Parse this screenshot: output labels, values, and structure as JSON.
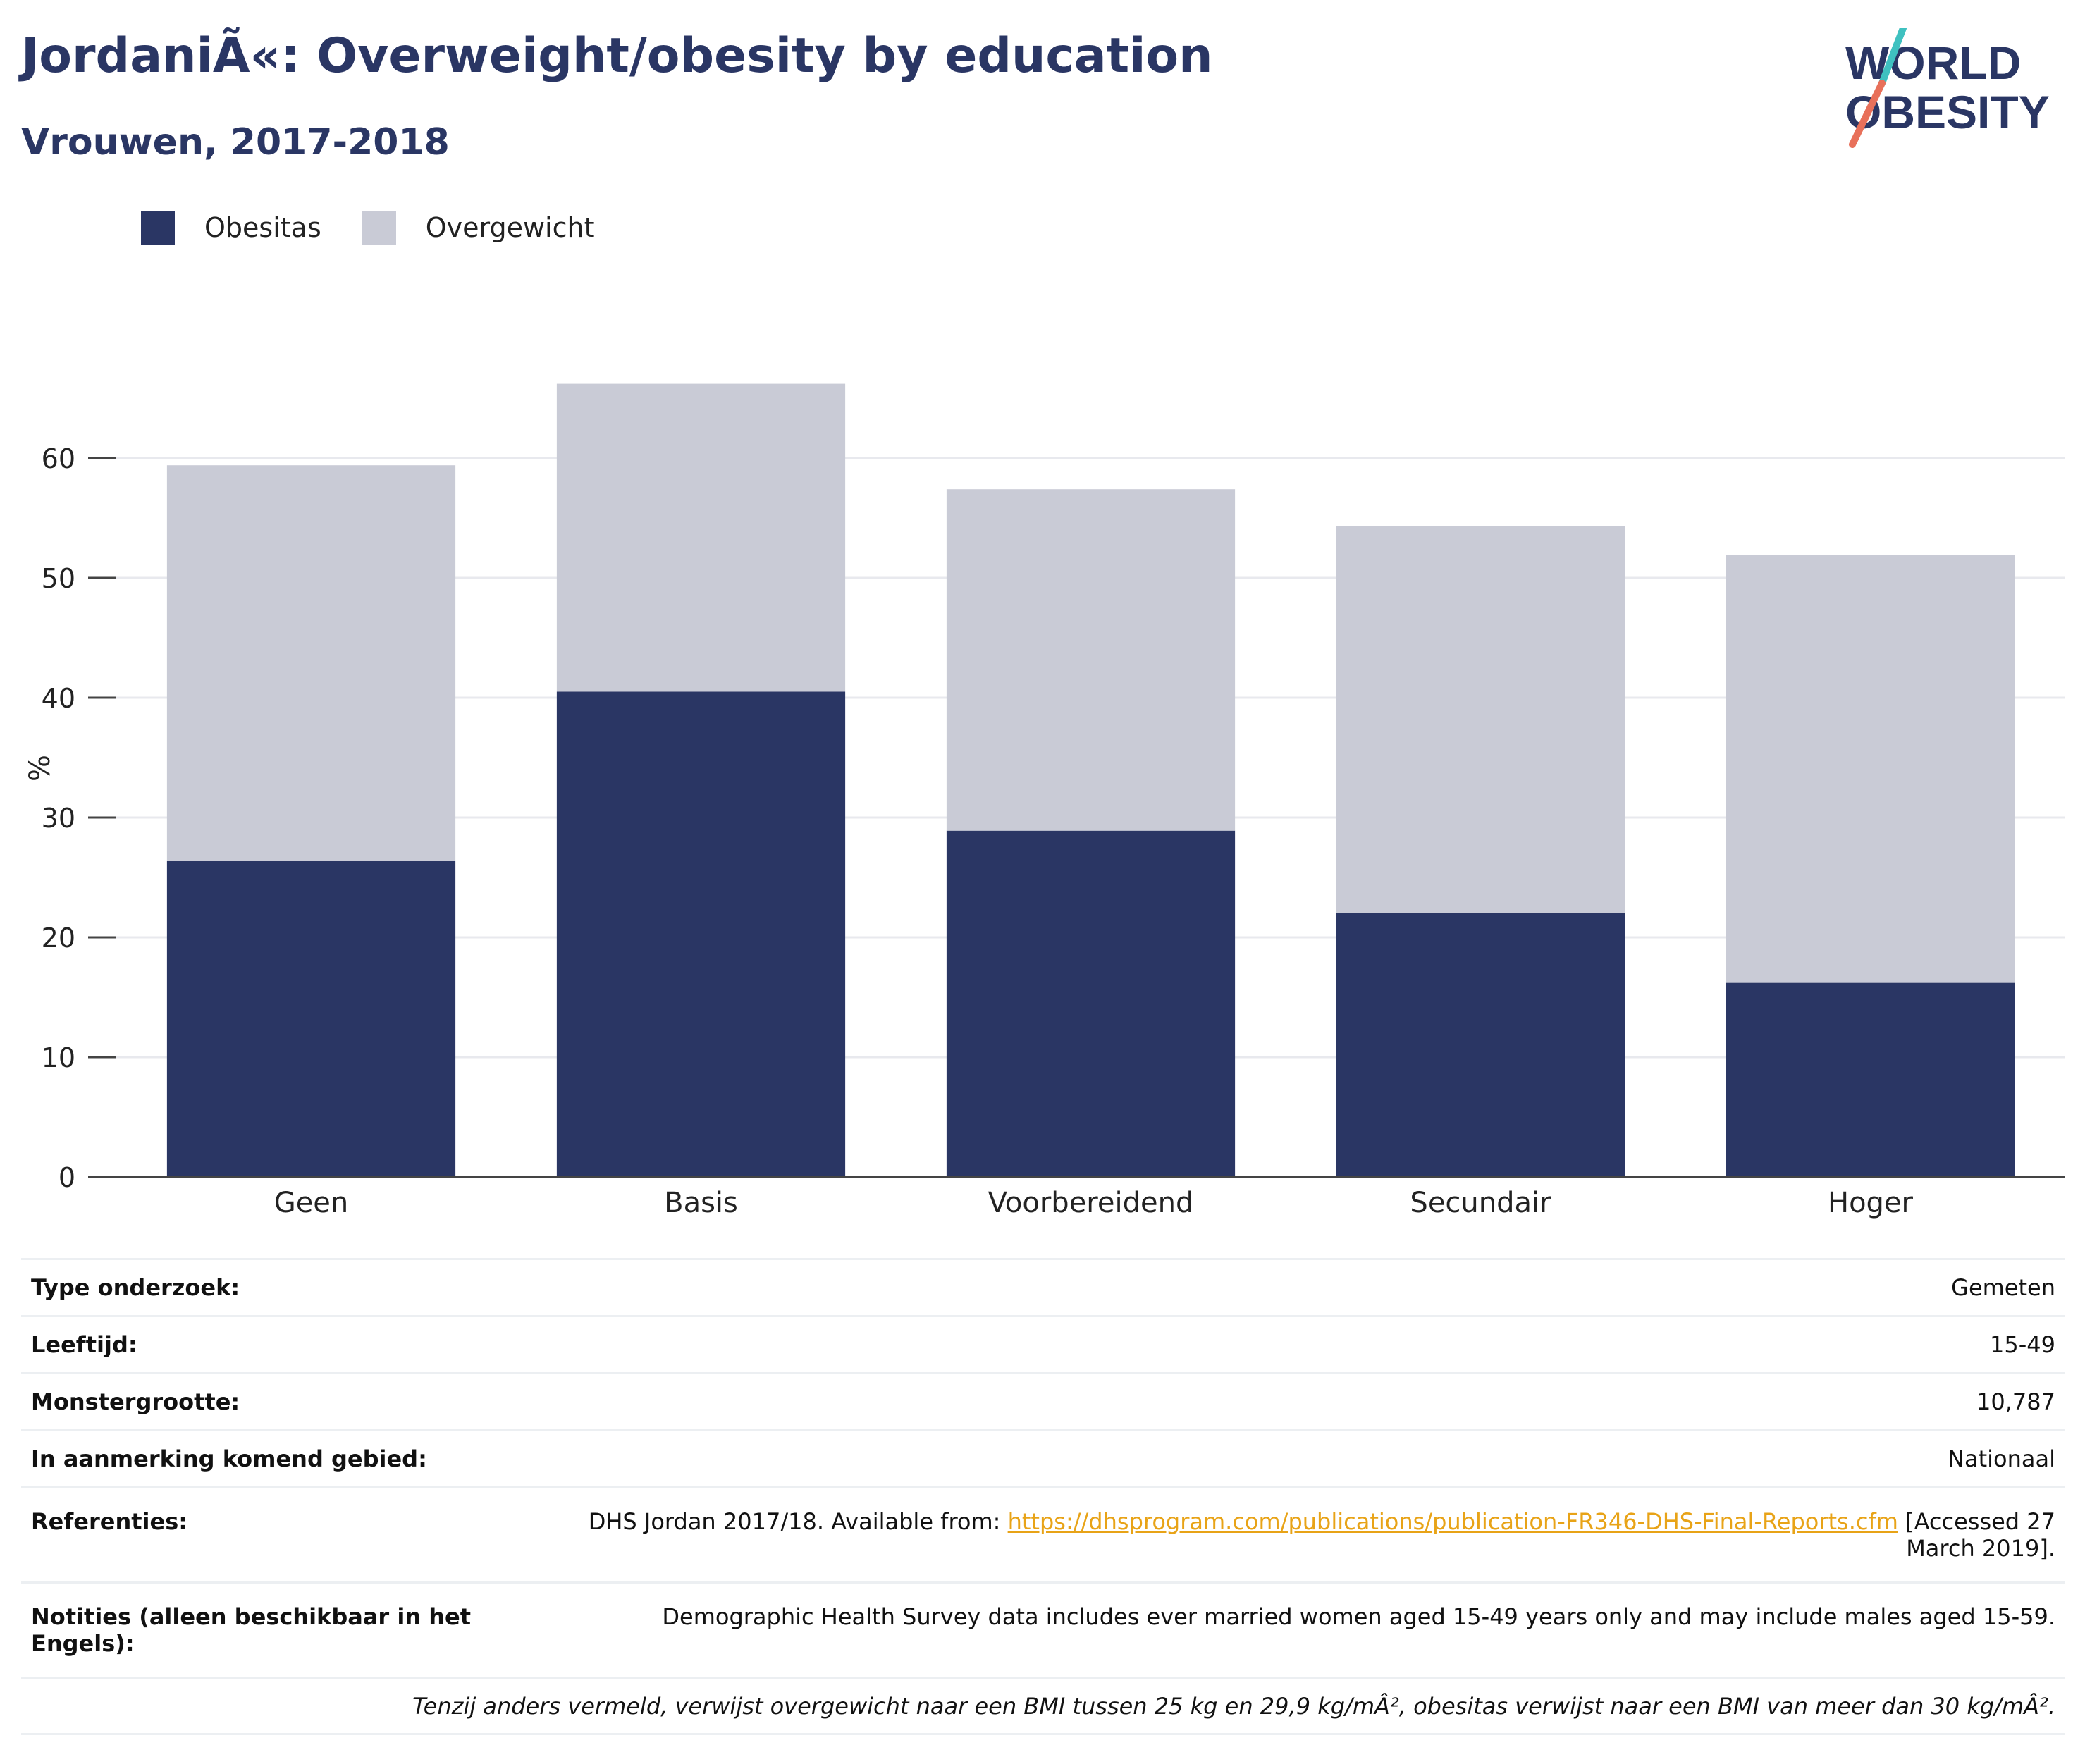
{
  "header": {
    "title": "JordaniÃ«: Overweight/obesity by education",
    "subtitle": "Vrouwen, 2017-2018"
  },
  "logo": {
    "line1": "WORLD",
    "line2": "OBESITY",
    "colors": {
      "text": "#2a3664",
      "teal": "#3fc1c0",
      "coral": "#e8705a"
    }
  },
  "legend": [
    {
      "label": "Obesitas",
      "color": "#2a3664"
    },
    {
      "label": "Overgewicht",
      "color": "#c9cbd6"
    }
  ],
  "chart_data": {
    "type": "bar",
    "stacked": true,
    "categories": [
      "Geen",
      "Basis",
      "Voorbereidend",
      "Secundair",
      "Hoger"
    ],
    "series": [
      {
        "name": "Obesitas",
        "values": [
          26.4,
          40.5,
          28.9,
          22.0,
          16.2
        ],
        "color": "#2a3664"
      },
      {
        "name": "Overgewicht",
        "values": [
          33.0,
          25.7,
          28.5,
          32.3,
          35.7
        ],
        "color": "#c9cbd6"
      }
    ],
    "ylabel": "%",
    "ylim": [
      0,
      70
    ],
    "yticks": [
      0,
      10,
      20,
      30,
      40,
      50,
      60
    ],
    "grid": true,
    "legend_position": "top-left"
  },
  "meta": {
    "survey_type": {
      "label": "Type onderzoek:",
      "value": "Gemeten"
    },
    "age": {
      "label": "Leeftijd:",
      "value": "15-49"
    },
    "sample_size": {
      "label": "Monstergrootte:",
      "value": "10,787"
    },
    "area": {
      "label": "In aanmerking komend gebied:",
      "value": "Nationaal"
    },
    "references": {
      "label": "Referenties:",
      "prefix": "DHS Jordan 2017/18. Available from: ",
      "link": "https://dhsprogram.com/publications/publication-FR346-DHS-Final-Reports.cfm",
      "suffix_line1": " [Accessed 27",
      "suffix_line2": "March 2019]."
    },
    "notes": {
      "label": "Notities (alleen beschikbaar in het Engels):",
      "value": "Demographic Health Survey data includes ever married women aged 15-49 years only and may include males aged 15-59."
    },
    "footnote": "Tenzij anders vermeld, verwijst overgewicht naar een BMI tussen 25 kg en 29,9 kg/mÂ², obesitas verwijst naar een BMI van meer dan 30 kg/mÂ²."
  }
}
